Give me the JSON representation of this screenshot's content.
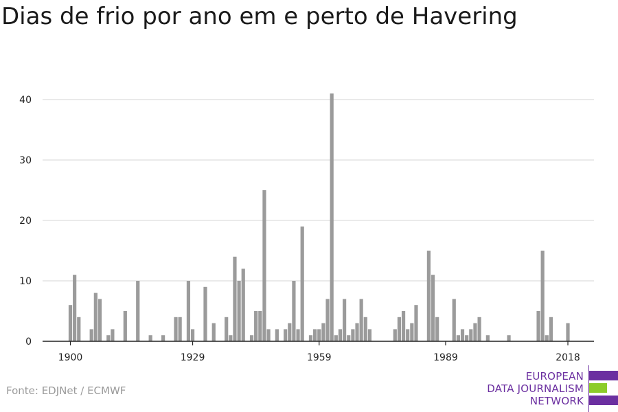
{
  "title": "Dias de frio por ano em e perto de Havering",
  "source": "Fonte: EDJNet / ECMWF",
  "logo": {
    "line1": "EUROPEAN",
    "line2": "DATA JOURNALISM",
    "line3": "NETWORK",
    "colors": {
      "purple": "#6b2fa0",
      "green": "#8ccc2a"
    }
  },
  "colors": {
    "bar": "#9b9b9b",
    "grid": "#dddddd",
    "axis": "#222222"
  },
  "chart_data": {
    "type": "bar",
    "title": "Dias de frio por ano em e perto de Havering",
    "xlabel": "",
    "ylabel": "",
    "ylim": [
      0,
      43
    ],
    "yticks": [
      0,
      10,
      20,
      30,
      40
    ],
    "xticks": [
      1900,
      1929,
      1959,
      1989,
      2018
    ],
    "grid": true,
    "x": [
      1900,
      1901,
      1902,
      1903,
      1904,
      1905,
      1906,
      1907,
      1908,
      1909,
      1910,
      1911,
      1912,
      1913,
      1914,
      1915,
      1916,
      1917,
      1918,
      1919,
      1920,
      1921,
      1922,
      1923,
      1924,
      1925,
      1926,
      1927,
      1928,
      1929,
      1930,
      1931,
      1932,
      1933,
      1934,
      1935,
      1936,
      1937,
      1938,
      1939,
      1940,
      1941,
      1942,
      1943,
      1944,
      1945,
      1946,
      1947,
      1948,
      1949,
      1950,
      1951,
      1952,
      1953,
      1954,
      1955,
      1956,
      1957,
      1958,
      1959,
      1960,
      1961,
      1962,
      1963,
      1964,
      1965,
      1966,
      1967,
      1968,
      1969,
      1970,
      1971,
      1972,
      1973,
      1974,
      1975,
      1976,
      1977,
      1978,
      1979,
      1980,
      1981,
      1982,
      1983,
      1984,
      1985,
      1986,
      1987,
      1988,
      1989,
      1990,
      1991,
      1992,
      1993,
      1994,
      1995,
      1996,
      1997,
      1998,
      1999,
      2000,
      2001,
      2002,
      2003,
      2004,
      2005,
      2006,
      2007,
      2008,
      2009,
      2010,
      2011,
      2012,
      2013,
      2014,
      2015,
      2016,
      2017,
      2018
    ],
    "values": [
      6,
      11,
      4,
      0,
      0,
      2,
      8,
      7,
      0,
      1,
      2,
      0,
      0,
      5,
      0,
      0,
      10,
      0,
      0,
      1,
      0,
      0,
      1,
      0,
      0,
      4,
      4,
      0,
      10,
      2,
      0,
      0,
      9,
      0,
      3,
      0,
      0,
      4,
      1,
      14,
      10,
      12,
      0,
      1,
      5,
      5,
      25,
      2,
      0,
      2,
      0,
      2,
      3,
      10,
      2,
      19,
      0,
      1,
      2,
      2,
      3,
      7,
      41,
      1,
      2,
      7,
      1,
      2,
      3,
      7,
      4,
      2,
      0,
      0,
      0,
      0,
      0,
      2,
      4,
      5,
      2,
      3,
      6,
      0,
      0,
      15,
      11,
      4,
      0,
      0,
      0,
      7,
      1,
      2,
      1,
      2,
      3,
      4,
      0,
      1,
      0,
      0,
      0,
      0,
      1,
      0,
      0,
      0,
      0,
      0,
      0,
      5,
      15,
      1,
      4,
      0,
      0,
      0,
      3
    ]
  }
}
